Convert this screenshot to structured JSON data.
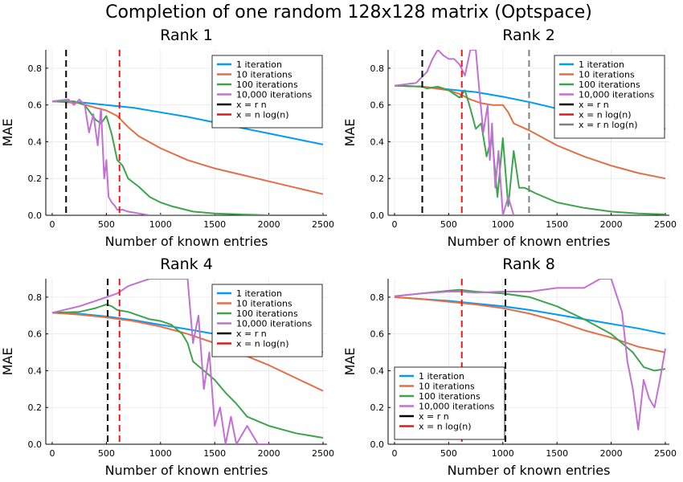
{
  "figure_title": "Completion of one random 128x128 matrix (Optspace)",
  "chart_data": [
    {
      "type": "line",
      "title": "Rank 1",
      "xlabel": "Number of known entries",
      "ylabel": "MAE",
      "xlim": [
        0,
        2500
      ],
      "ylim": [
        0,
        0.9
      ],
      "xticks": [
        0,
        500,
        1000,
        1500,
        2000,
        2500
      ],
      "yticks": [
        0.0,
        0.2,
        0.4,
        0.6,
        0.8
      ],
      "grid": true,
      "legend": "top-right",
      "series": [
        {
          "name": "1 iteration",
          "color": "#009af9",
          "x": [
            0,
            250,
            500,
            750,
            1000,
            1250,
            1500,
            1750,
            2000,
            2250,
            2500
          ],
          "y": [
            0.62,
            0.615,
            0.6,
            0.585,
            0.56,
            0.535,
            0.505,
            0.475,
            0.445,
            0.415,
            0.385
          ]
        },
        {
          "name": "10 iterations",
          "color": "#e26f46",
          "x": [
            0,
            250,
            400,
            500,
            600,
            700,
            800,
            1000,
            1250,
            1500,
            1750,
            2000,
            2250,
            2500
          ],
          "y": [
            0.62,
            0.61,
            0.585,
            0.57,
            0.54,
            0.48,
            0.43,
            0.365,
            0.3,
            0.255,
            0.22,
            0.185,
            0.15,
            0.115
          ]
        },
        {
          "name": "100 iterations",
          "color": "#3da44d",
          "x": [
            0,
            200,
            300,
            400,
            450,
            500,
            550,
            600,
            650,
            700,
            800,
            900,
            1000,
            1100,
            1200,
            1300,
            1500,
            1750,
            2000,
            2500
          ],
          "y": [
            0.62,
            0.62,
            0.6,
            0.52,
            0.5,
            0.54,
            0.44,
            0.3,
            0.27,
            0.2,
            0.155,
            0.1,
            0.07,
            0.05,
            0.035,
            0.02,
            0.01,
            0.005,
            0.0,
            0.0
          ]
        },
        {
          "name": "10,000 iterations",
          "color": "#c271d2",
          "x": [
            0,
            150,
            200,
            250,
            300,
            340,
            380,
            420,
            450,
            480,
            500,
            520,
            550,
            580,
            600,
            650,
            700,
            800,
            900,
            1000,
            1200,
            1500
          ],
          "y": [
            0.62,
            0.63,
            0.6,
            0.63,
            0.6,
            0.45,
            0.55,
            0.38,
            0.58,
            0.2,
            0.3,
            0.1,
            0.07,
            0.05,
            0.03,
            0.03,
            0.02,
            0.01,
            0.0,
            0.0,
            0.0,
            0.0
          ]
        }
      ],
      "vlines": [
        {
          "name": "x = r n",
          "color": "#000000",
          "x": 128
        },
        {
          "name": "x = n log(n)",
          "color": "#e31a1c",
          "x": 621
        }
      ]
    },
    {
      "type": "line",
      "title": "Rank 2",
      "xlabel": "Number of known entries",
      "ylabel": "MAE",
      "xlim": [
        0,
        2500
      ],
      "ylim": [
        0,
        0.9
      ],
      "xticks": [
        0,
        500,
        1000,
        1500,
        2000,
        2500
      ],
      "yticks": [
        0.0,
        0.2,
        0.4,
        0.6,
        0.8
      ],
      "grid": true,
      "legend": "top-right",
      "series": [
        {
          "name": "1 iteration",
          "color": "#009af9",
          "x": [
            0,
            250,
            500,
            750,
            1000,
            1250,
            1500,
            1750,
            2000,
            2250,
            2500
          ],
          "y": [
            0.705,
            0.7,
            0.685,
            0.67,
            0.645,
            0.615,
            0.58,
            0.55,
            0.525,
            0.495,
            0.47
          ]
        },
        {
          "name": "10 iterations",
          "color": "#e26f46",
          "x": [
            0,
            250,
            500,
            600,
            700,
            800,
            900,
            1000,
            1050,
            1100,
            1250,
            1500,
            1750,
            2000,
            2250,
            2500
          ],
          "y": [
            0.705,
            0.7,
            0.68,
            0.66,
            0.63,
            0.61,
            0.6,
            0.6,
            0.56,
            0.5,
            0.46,
            0.38,
            0.32,
            0.27,
            0.23,
            0.2
          ]
        },
        {
          "name": "100 iterations",
          "color": "#3da44d",
          "x": [
            0,
            250,
            300,
            400,
            500,
            600,
            650,
            700,
            750,
            800,
            850,
            900,
            950,
            1000,
            1050,
            1100,
            1150,
            1200,
            1300,
            1500,
            1750,
            2000,
            2250,
            2500
          ],
          "y": [
            0.705,
            0.7,
            0.69,
            0.7,
            0.68,
            0.64,
            0.68,
            0.58,
            0.47,
            0.5,
            0.32,
            0.43,
            0.1,
            0.42,
            0.05,
            0.35,
            0.15,
            0.15,
            0.12,
            0.07,
            0.04,
            0.02,
            0.01,
            0.005
          ]
        },
        {
          "name": "10,000 iterations",
          "color": "#c271d2",
          "x": [
            0,
            200,
            250,
            300,
            350,
            400,
            450,
            500,
            550,
            600,
            650,
            700,
            750,
            780,
            820,
            860,
            880,
            900,
            930,
            960,
            1000,
            1050,
            1100
          ],
          "y": [
            0.705,
            0.72,
            0.75,
            0.78,
            0.85,
            0.9,
            0.87,
            0.85,
            0.85,
            0.82,
            0.76,
            0.9,
            0.9,
            0.7,
            0.45,
            0.6,
            0.3,
            0.5,
            0.15,
            0.35,
            0.0,
            0.1,
            0.0
          ]
        }
      ],
      "vlines": [
        {
          "name": "x = r n",
          "color": "#000000",
          "x": 256
        },
        {
          "name": "x = n log(n)",
          "color": "#e31a1c",
          "x": 621
        },
        {
          "name": "x = r n log(n)",
          "color": "#808080",
          "x": 1242
        }
      ]
    },
    {
      "type": "line",
      "title": "Rank 4",
      "xlabel": "Number of known entries",
      "ylabel": "MAE",
      "xlim": [
        0,
        2500
      ],
      "ylim": [
        0,
        0.9
      ],
      "xticks": [
        0,
        500,
        1000,
        1500,
        2000,
        2500
      ],
      "yticks": [
        0.0,
        0.2,
        0.4,
        0.6,
        0.8
      ],
      "grid": true,
      "legend": "top-right",
      "series": [
        {
          "name": "1 iteration",
          "color": "#009af9",
          "x": [
            0,
            250,
            500,
            750,
            1000,
            1250,
            1500,
            1750,
            2000,
            2250,
            2500
          ],
          "y": [
            0.715,
            0.71,
            0.695,
            0.675,
            0.65,
            0.625,
            0.6,
            0.575,
            0.55,
            0.525,
            0.5
          ]
        },
        {
          "name": "10 iterations",
          "color": "#e26f46",
          "x": [
            0,
            250,
            500,
            750,
            1000,
            1250,
            1500,
            1750,
            2000,
            2250,
            2500
          ],
          "y": [
            0.715,
            0.705,
            0.69,
            0.67,
            0.64,
            0.6,
            0.55,
            0.49,
            0.43,
            0.36,
            0.29
          ]
        },
        {
          "name": "100 iterations",
          "color": "#3da44d",
          "x": [
            0,
            250,
            400,
            500,
            550,
            600,
            700,
            800,
            900,
            1000,
            1100,
            1200,
            1250,
            1300,
            1400,
            1500,
            1600,
            1700,
            1800,
            2000,
            2250,
            2500
          ],
          "y": [
            0.715,
            0.72,
            0.74,
            0.76,
            0.75,
            0.73,
            0.72,
            0.7,
            0.68,
            0.67,
            0.65,
            0.6,
            0.55,
            0.45,
            0.4,
            0.35,
            0.28,
            0.22,
            0.15,
            0.1,
            0.06,
            0.035
          ]
        },
        {
          "name": "10,000 iterations",
          "color": "#c271d2",
          "x": [
            0,
            250,
            500,
            600,
            700,
            800,
            900,
            1000,
            1100,
            1200,
            1250,
            1300,
            1350,
            1400,
            1450,
            1500,
            1550,
            1600,
            1650,
            1700,
            1800,
            1900,
            2000
          ],
          "y": [
            0.715,
            0.75,
            0.8,
            0.82,
            0.86,
            0.88,
            0.9,
            0.9,
            0.9,
            0.9,
            0.9,
            0.55,
            0.7,
            0.3,
            0.5,
            0.1,
            0.2,
            0.0,
            0.15,
            0.0,
            0.1,
            0.0,
            0.0
          ]
        }
      ],
      "vlines": [
        {
          "name": "x = r n",
          "color": "#000000",
          "x": 512
        },
        {
          "name": "x = n log(n)",
          "color": "#e31a1c",
          "x": 621
        }
      ]
    },
    {
      "type": "line",
      "title": "Rank 8",
      "xlabel": "Number of known entries",
      "ylabel": "MAE",
      "xlim": [
        0,
        2500
      ],
      "ylim": [
        0,
        0.9
      ],
      "xticks": [
        0,
        500,
        1000,
        1500,
        2000,
        2500
      ],
      "yticks": [
        0.0,
        0.2,
        0.4,
        0.6,
        0.8
      ],
      "grid": true,
      "legend": "bottom-left",
      "series": [
        {
          "name": "1 iteration",
          "color": "#009af9",
          "x": [
            0,
            250,
            500,
            750,
            1000,
            1250,
            1500,
            1750,
            2000,
            2250,
            2500
          ],
          "y": [
            0.8,
            0.79,
            0.78,
            0.765,
            0.75,
            0.73,
            0.705,
            0.68,
            0.655,
            0.63,
            0.6
          ]
        },
        {
          "name": "10 iterations",
          "color": "#e26f46",
          "x": [
            0,
            250,
            500,
            750,
            1000,
            1250,
            1500,
            1750,
            2000,
            2250,
            2500
          ],
          "y": [
            0.8,
            0.79,
            0.775,
            0.76,
            0.74,
            0.71,
            0.67,
            0.62,
            0.58,
            0.53,
            0.5
          ]
        },
        {
          "name": "100 iterations",
          "color": "#3da44d",
          "x": [
            0,
            250,
            500,
            600,
            750,
            1000,
            1250,
            1500,
            1750,
            2000,
            2100,
            2200,
            2300,
            2400,
            2500
          ],
          "y": [
            0.805,
            0.82,
            0.835,
            0.84,
            0.83,
            0.82,
            0.8,
            0.75,
            0.68,
            0.6,
            0.55,
            0.5,
            0.42,
            0.4,
            0.41
          ]
        },
        {
          "name": "10,000 iterations",
          "color": "#c271d2",
          "x": [
            0,
            250,
            500,
            600,
            750,
            1000,
            1250,
            1500,
            1750,
            1900,
            2000,
            2100,
            2150,
            2200,
            2250,
            2300,
            2350,
            2400,
            2450,
            2500
          ],
          "y": [
            0.805,
            0.82,
            0.83,
            0.83,
            0.825,
            0.83,
            0.83,
            0.85,
            0.85,
            0.9,
            0.9,
            0.72,
            0.45,
            0.3,
            0.08,
            0.35,
            0.25,
            0.2,
            0.35,
            0.52
          ]
        }
      ],
      "vlines": [
        {
          "name": "x = r n",
          "color": "#000000",
          "x": 1024
        },
        {
          "name": "x = n log(n)",
          "color": "#e31a1c",
          "x": 621
        }
      ]
    }
  ]
}
